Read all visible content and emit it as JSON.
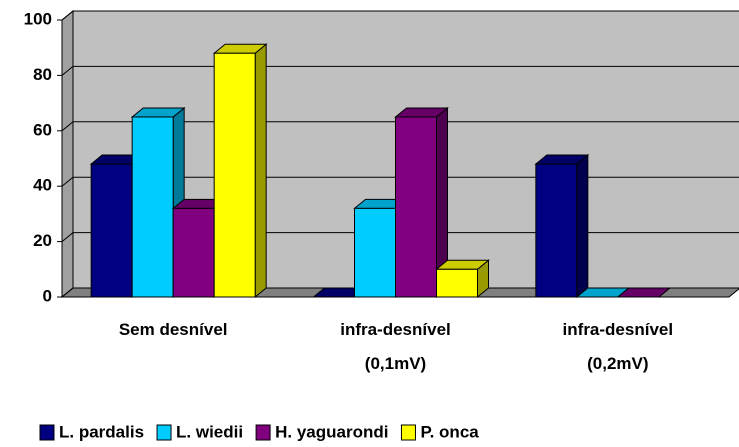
{
  "chart_data": {
    "type": "bar3d",
    "categories": [
      [
        "Sem desnível"
      ],
      [
        "infra-desnível",
        "(0,1mV)"
      ],
      [
        "infra-desnível",
        "(0,2mV)"
      ]
    ],
    "series": [
      {
        "name": "L. pardalis",
        "color": "#000080",
        "values": [
          48,
          0,
          48
        ]
      },
      {
        "name": "L. wiedii",
        "color": "#00ccff",
        "values": [
          65,
          32,
          0
        ]
      },
      {
        "name": "H. yaguarondi",
        "color": "#800080",
        "values": [
          32,
          65,
          0
        ]
      },
      {
        "name": "P. onca",
        "color": "#ffff00",
        "values": [
          88,
          10,
          null
        ]
      }
    ],
    "ylim": [
      0,
      100
    ],
    "yticks": [
      0,
      20,
      40,
      60,
      80,
      100
    ],
    "grid": true,
    "legend": "bottom"
  }
}
